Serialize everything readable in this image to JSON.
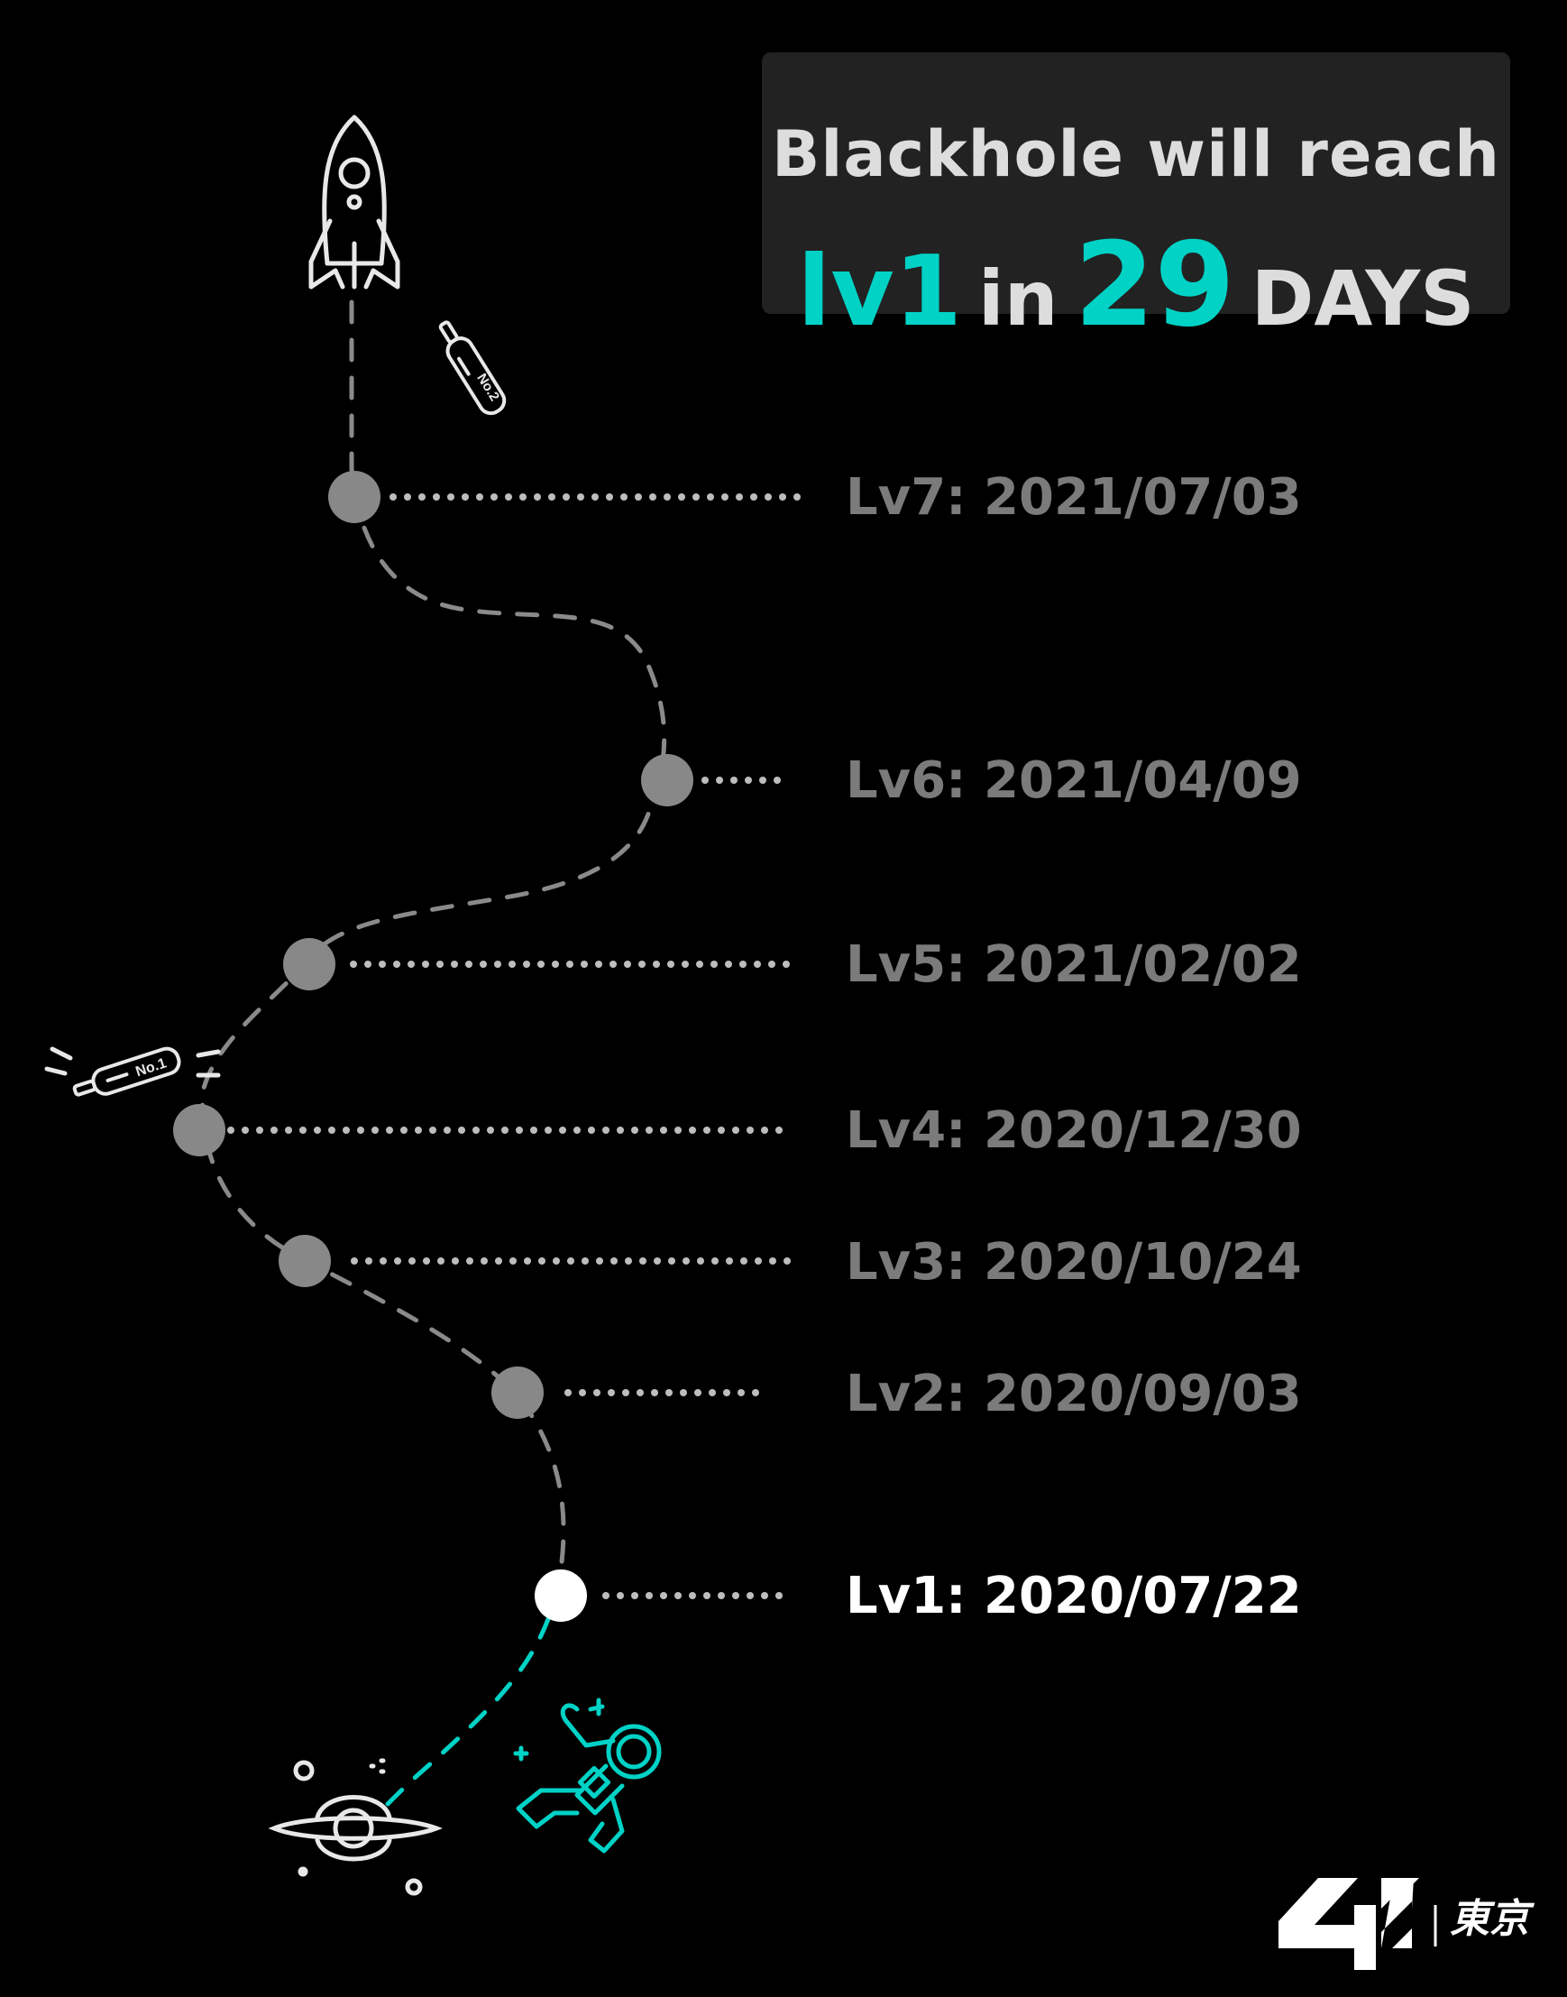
{
  "banner": {
    "line1": "Blackhole will reach",
    "level": "lv1",
    "in_word": "in",
    "days_count": "29",
    "days_word": "DAYS"
  },
  "timeline": [
    {
      "label": "Lv7: 2021/07/03",
      "current": false
    },
    {
      "label": "Lv6: 2021/04/09",
      "current": false
    },
    {
      "label": "Lv5: 2021/02/02",
      "current": false
    },
    {
      "label": "Lv4: 2020/12/30",
      "current": false
    },
    {
      "label": "Lv3: 2020/10/24",
      "current": false
    },
    {
      "label": "Lv2: 2020/09/03",
      "current": false
    },
    {
      "label": "Lv1: 2020/07/22",
      "current": true
    }
  ],
  "bottles": [
    {
      "text": "No.2"
    },
    {
      "text": "No.1"
    }
  ],
  "brand": {
    "logo": "42",
    "city": "東京"
  },
  "colors": {
    "background": "#000000",
    "accent": "#00d2c6",
    "inactive": "#7b7b7b",
    "node_inactive": "#888888",
    "current": "#ffffff",
    "banner_bg": "#222222"
  },
  "icons": [
    "rocket-icon",
    "bottle-icon",
    "blackhole-icon",
    "astronaut-icon",
    "logo-42"
  ]
}
